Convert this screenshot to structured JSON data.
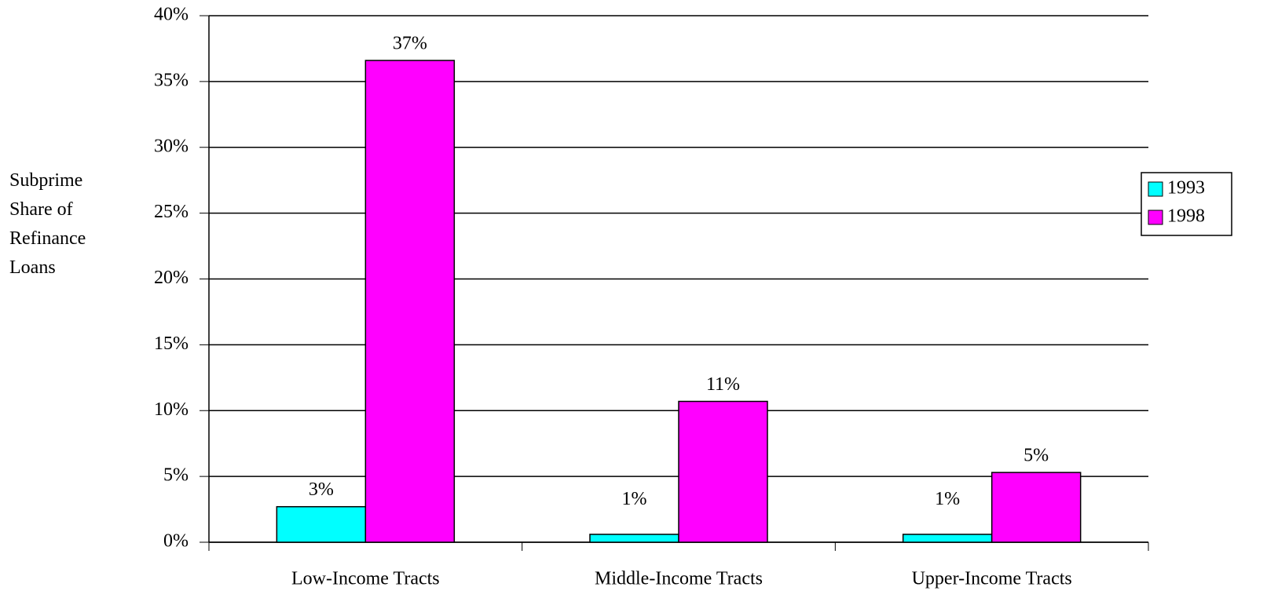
{
  "chart_data": {
    "type": "bar",
    "y_axis_label": "Subprime Share of Refinance Loans",
    "categories": [
      "Low-Income Tracts",
      "Middle-Income Tracts",
      "Upper-Income Tracts"
    ],
    "series": [
      {
        "name": "1993",
        "color": "#00ffff",
        "values": [
          2.7,
          0.6,
          0.6
        ],
        "value_labels": [
          "3%",
          "1%",
          "1%"
        ]
      },
      {
        "name": "1998",
        "color": "#ff00ff",
        "values": [
          36.6,
          10.7,
          5.3
        ],
        "value_labels": [
          "37%",
          "11%",
          "5%"
        ]
      }
    ],
    "ylim": [
      0,
      40
    ],
    "yticks": [
      {
        "value": 0,
        "label": "0%"
      },
      {
        "value": 5,
        "label": "5%"
      },
      {
        "value": 10,
        "label": "10%"
      },
      {
        "value": 15,
        "label": "15%"
      },
      {
        "value": 20,
        "label": "20%"
      },
      {
        "value": 25,
        "label": "25%"
      },
      {
        "value": 30,
        "label": "30%"
      },
      {
        "value": 35,
        "label": "35%"
      },
      {
        "value": 40,
        "label": "40%"
      }
    ],
    "grid": true,
    "legend": "right"
  }
}
